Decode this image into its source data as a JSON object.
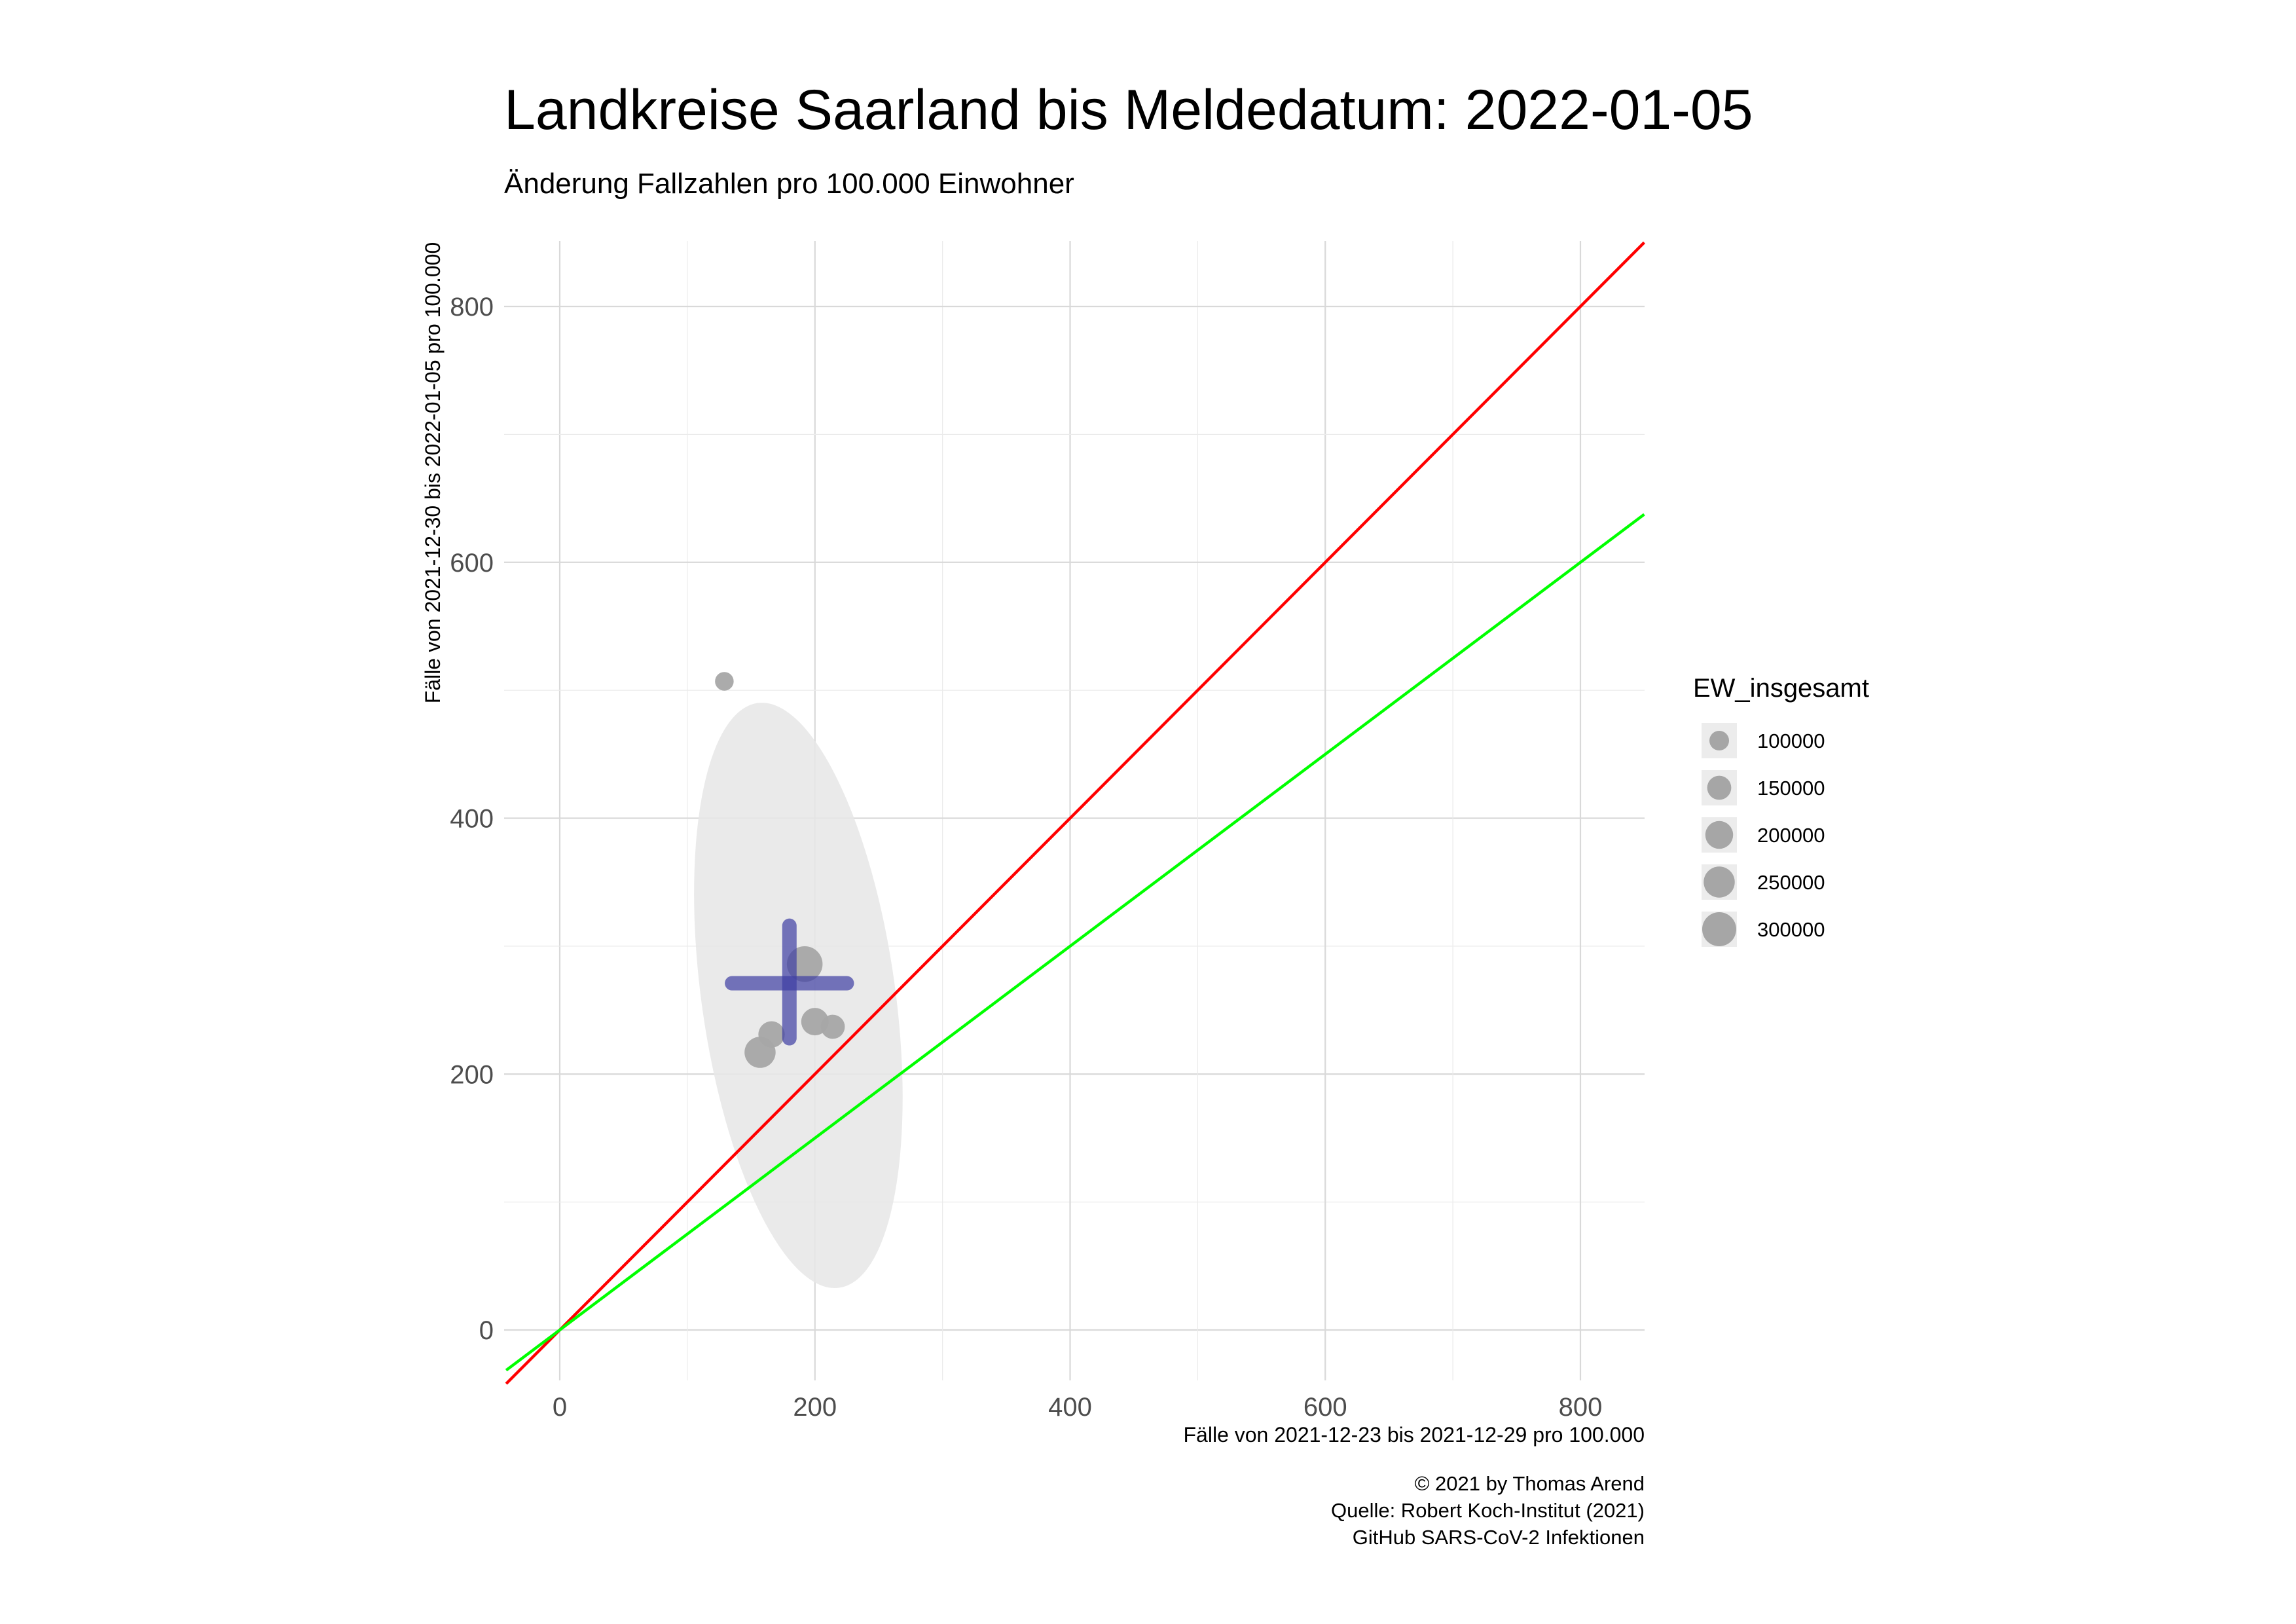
{
  "title": "Landkreise Saarland bis Meldedatum: 2022-01-05",
  "subtitle": "Änderung Fallzahlen pro 100.000 Einwohner",
  "caption": [
    "© 2021 by Thomas Arend",
    "Quelle: Robert Koch-Institut (2021)",
    "GitHub SARS-CoV-2 Infektionen"
  ],
  "colors": {
    "point": "#a6a6a6",
    "ellipse": "#e6e6e6",
    "cross": "#3d3da3",
    "line_red": "#ff0000",
    "line_green": "#00ff00",
    "grid_major": "#d9d9d9",
    "grid_minor": "#ebebeb",
    "legend_key_bg": "#ececec"
  },
  "chart_data": {
    "type": "scatter",
    "title": "Landkreise Saarland bis Meldedatum: 2022-01-05",
    "subtitle": "Änderung Fallzahlen pro 100.000 Einwohner",
    "xlabel": "Fälle von 2021-12-23 bis 2021-12-29 pro 100.000",
    "ylabel": "Fälle von 2021-12-30 bis 2022-01-05 pro 100.000",
    "xlim": [
      -42,
      850
    ],
    "ylim": [
      -80,
      850
    ],
    "x_ticks": [
      0,
      200,
      400,
      600,
      800
    ],
    "y_ticks": [
      0,
      200,
      400,
      600,
      800
    ],
    "grid": true,
    "points": [
      {
        "x": 129,
        "y": 507,
        "size": 90000
      },
      {
        "x": 157,
        "y": 217,
        "size": 250000
      },
      {
        "x": 166,
        "y": 231,
        "size": 180000
      },
      {
        "x": 200,
        "y": 241,
        "size": 195000
      },
      {
        "x": 214,
        "y": 237,
        "size": 150000
      },
      {
        "x": 192,
        "y": 286,
        "size": 330000
      }
    ],
    "ellipse": {
      "polygon": [
        [
          155,
          490
        ],
        [
          219,
          33
        ],
        [
          165,
          200
        ],
        [
          134,
          367
        ],
        [
          155,
          490
        ]
      ]
    },
    "cross": {
      "x": 180,
      "y": 271,
      "x_range": [
        135,
        225
      ],
      "y_range": [
        228,
        316
      ]
    },
    "lines": [
      {
        "color": "red",
        "slope": 1.0,
        "intercept": 0
      },
      {
        "color": "green",
        "slope": 0.75,
        "intercept": 0
      }
    ],
    "legend": {
      "title": "EW_insgesamt",
      "position": "right",
      "entries": [
        {
          "label": "100000",
          "size": 100000
        },
        {
          "label": "150000",
          "size": 150000
        },
        {
          "label": "200000",
          "size": 200000
        },
        {
          "label": "250000",
          "size": 250000
        },
        {
          "label": "300000",
          "size": 300000
        }
      ]
    }
  }
}
